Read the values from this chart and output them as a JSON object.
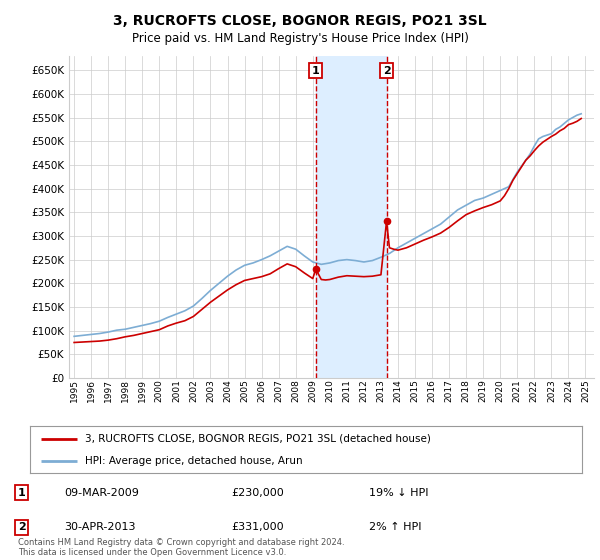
{
  "title": "3, RUCROFTS CLOSE, BOGNOR REGIS, PO21 3SL",
  "subtitle": "Price paid vs. HM Land Registry's House Price Index (HPI)",
  "legend_line1": "3, RUCROFTS CLOSE, BOGNOR REGIS, PO21 3SL (detached house)",
  "legend_line2": "HPI: Average price, detached house, Arun",
  "transaction1_date": "09-MAR-2009",
  "transaction1_price": "£230,000",
  "transaction1_hpi": "19% ↓ HPI",
  "transaction2_date": "30-APR-2013",
  "transaction2_price": "£331,000",
  "transaction2_hpi": "2% ↑ HPI",
  "footnote": "Contains HM Land Registry data © Crown copyright and database right 2024.\nThis data is licensed under the Open Government Licence v3.0.",
  "red_color": "#cc0000",
  "blue_color": "#7dadd4",
  "highlight_color": "#ddeeff",
  "grid_color": "#cccccc",
  "ylim": [
    0,
    680000
  ],
  "yticks": [
    0,
    50000,
    100000,
    150000,
    200000,
    250000,
    300000,
    350000,
    400000,
    450000,
    500000,
    550000,
    600000,
    650000
  ],
  "transaction1_x": 2009.18,
  "transaction2_x": 2013.33,
  "hpi_data_x": [
    1995.0,
    1995.25,
    1995.5,
    1995.75,
    1996.0,
    1996.25,
    1996.5,
    1996.75,
    1997.0,
    1997.25,
    1997.5,
    1997.75,
    1998.0,
    1998.25,
    1998.5,
    1998.75,
    1999.0,
    1999.25,
    1999.5,
    1999.75,
    2000.0,
    2000.25,
    2000.5,
    2000.75,
    2001.0,
    2001.25,
    2001.5,
    2001.75,
    2002.0,
    2002.25,
    2002.5,
    2002.75,
    2003.0,
    2003.25,
    2003.5,
    2003.75,
    2004.0,
    2004.25,
    2004.5,
    2004.75,
    2005.0,
    2005.25,
    2005.5,
    2005.75,
    2006.0,
    2006.25,
    2006.5,
    2006.75,
    2007.0,
    2007.25,
    2007.5,
    2007.75,
    2008.0,
    2008.25,
    2008.5,
    2008.75,
    2009.0,
    2009.25,
    2009.5,
    2009.75,
    2010.0,
    2010.25,
    2010.5,
    2010.75,
    2011.0,
    2011.25,
    2011.5,
    2011.75,
    2012.0,
    2012.25,
    2012.5,
    2012.75,
    2013.0,
    2013.25,
    2013.5,
    2013.75,
    2014.0,
    2014.25,
    2014.5,
    2014.75,
    2015.0,
    2015.25,
    2015.5,
    2015.75,
    2016.0,
    2016.25,
    2016.5,
    2016.75,
    2017.0,
    2017.25,
    2017.5,
    2017.75,
    2018.0,
    2018.25,
    2018.5,
    2018.75,
    2019.0,
    2019.25,
    2019.5,
    2019.75,
    2020.0,
    2020.25,
    2020.5,
    2020.75,
    2021.0,
    2021.25,
    2021.5,
    2021.75,
    2022.0,
    2022.25,
    2022.5,
    2022.75,
    2023.0,
    2023.25,
    2023.5,
    2023.75,
    2024.0,
    2024.25,
    2024.5,
    2024.75
  ],
  "hpi_data_y": [
    88000,
    89000,
    90000,
    91000,
    92000,
    93000,
    94000,
    95500,
    97000,
    99000,
    101000,
    102000,
    103000,
    105000,
    107000,
    109000,
    111000,
    113000,
    115000,
    117500,
    120000,
    124000,
    128000,
    131500,
    135000,
    138500,
    142000,
    147000,
    152000,
    160000,
    168000,
    176500,
    185000,
    192500,
    200000,
    207500,
    215000,
    221500,
    228000,
    233000,
    238000,
    240500,
    243000,
    246500,
    250000,
    254000,
    258000,
    263000,
    268000,
    273000,
    278000,
    275000,
    272000,
    265000,
    258000,
    251500,
    245000,
    242500,
    240000,
    241500,
    243000,
    245500,
    248000,
    249000,
    250000,
    249000,
    248000,
    246500,
    245000,
    246500,
    248000,
    251500,
    255000,
    259000,
    263000,
    269000,
    275000,
    280000,
    285000,
    290000,
    295000,
    300000,
    305000,
    310000,
    315000,
    320000,
    325000,
    332500,
    340000,
    347500,
    355000,
    360000,
    365000,
    370000,
    375000,
    377500,
    380000,
    384000,
    388000,
    392000,
    396000,
    400000,
    404000,
    419500,
    435000,
    447500,
    460000,
    473000,
    490000,
    505000,
    510000,
    513000,
    516000,
    525000,
    530000,
    537500,
    545000,
    550000,
    555000,
    558000
  ],
  "price_data_x": [
    1995.0,
    1995.25,
    1995.5,
    1995.75,
    1996.0,
    1996.25,
    1996.5,
    1996.75,
    1997.0,
    1997.25,
    1997.5,
    1997.75,
    1998.0,
    1998.25,
    1998.5,
    1998.75,
    1999.0,
    1999.25,
    1999.5,
    1999.75,
    2000.0,
    2000.25,
    2000.5,
    2000.75,
    2001.0,
    2001.25,
    2001.5,
    2001.75,
    2002.0,
    2002.25,
    2002.5,
    2002.75,
    2003.0,
    2003.25,
    2003.5,
    2003.75,
    2004.0,
    2004.25,
    2004.5,
    2004.75,
    2005.0,
    2005.25,
    2005.5,
    2005.75,
    2006.0,
    2006.25,
    2006.5,
    2006.75,
    2007.0,
    2007.25,
    2007.5,
    2007.75,
    2008.0,
    2008.25,
    2008.5,
    2008.75,
    2009.0,
    2009.18,
    2009.5,
    2009.75,
    2010.0,
    2010.25,
    2010.5,
    2010.75,
    2011.0,
    2011.25,
    2011.5,
    2011.75,
    2012.0,
    2012.25,
    2012.5,
    2012.75,
    2013.0,
    2013.33,
    2013.5,
    2013.75,
    2014.0,
    2014.25,
    2014.5,
    2014.75,
    2015.0,
    2015.25,
    2015.5,
    2015.75,
    2016.0,
    2016.25,
    2016.5,
    2016.75,
    2017.0,
    2017.25,
    2017.5,
    2017.75,
    2018.0,
    2018.25,
    2018.5,
    2018.75,
    2019.0,
    2019.25,
    2019.5,
    2019.75,
    2020.0,
    2020.25,
    2020.5,
    2020.75,
    2021.0,
    2021.25,
    2021.5,
    2021.75,
    2022.0,
    2022.25,
    2022.5,
    2022.75,
    2023.0,
    2023.25,
    2023.5,
    2023.75,
    2024.0,
    2024.25,
    2024.5,
    2024.75
  ],
  "price_data_y": [
    75000,
    75500,
    76000,
    76500,
    77000,
    77500,
    78000,
    79000,
    80000,
    81500,
    83000,
    85000,
    87000,
    88500,
    90000,
    92000,
    94000,
    96000,
    98000,
    100000,
    102000,
    106000,
    110000,
    113000,
    116000,
    118500,
    121000,
    125500,
    130000,
    137500,
    145000,
    152500,
    160000,
    166500,
    173000,
    179500,
    186000,
    191500,
    197000,
    201500,
    206000,
    208000,
    210000,
    212000,
    214000,
    217000,
    220000,
    225500,
    231000,
    236000,
    241000,
    238000,
    235000,
    228500,
    222000,
    216000,
    210000,
    230000,
    208000,
    207000,
    208000,
    210500,
    213000,
    214500,
    216000,
    215500,
    215000,
    214500,
    214000,
    214500,
    215000,
    216500,
    218000,
    331000,
    275000,
    272000,
    270000,
    272500,
    275000,
    279000,
    283000,
    287000,
    291000,
    294500,
    298000,
    302000,
    306000,
    312000,
    318000,
    325000,
    332000,
    338500,
    345000,
    349000,
    353000,
    356500,
    360000,
    363000,
    366000,
    370000,
    374000,
    385000,
    400000,
    418000,
    432000,
    446000,
    460000,
    469000,
    480000,
    490000,
    498000,
    504000,
    510000,
    515000,
    522000,
    527000,
    535000,
    538000,
    542000,
    548000
  ]
}
